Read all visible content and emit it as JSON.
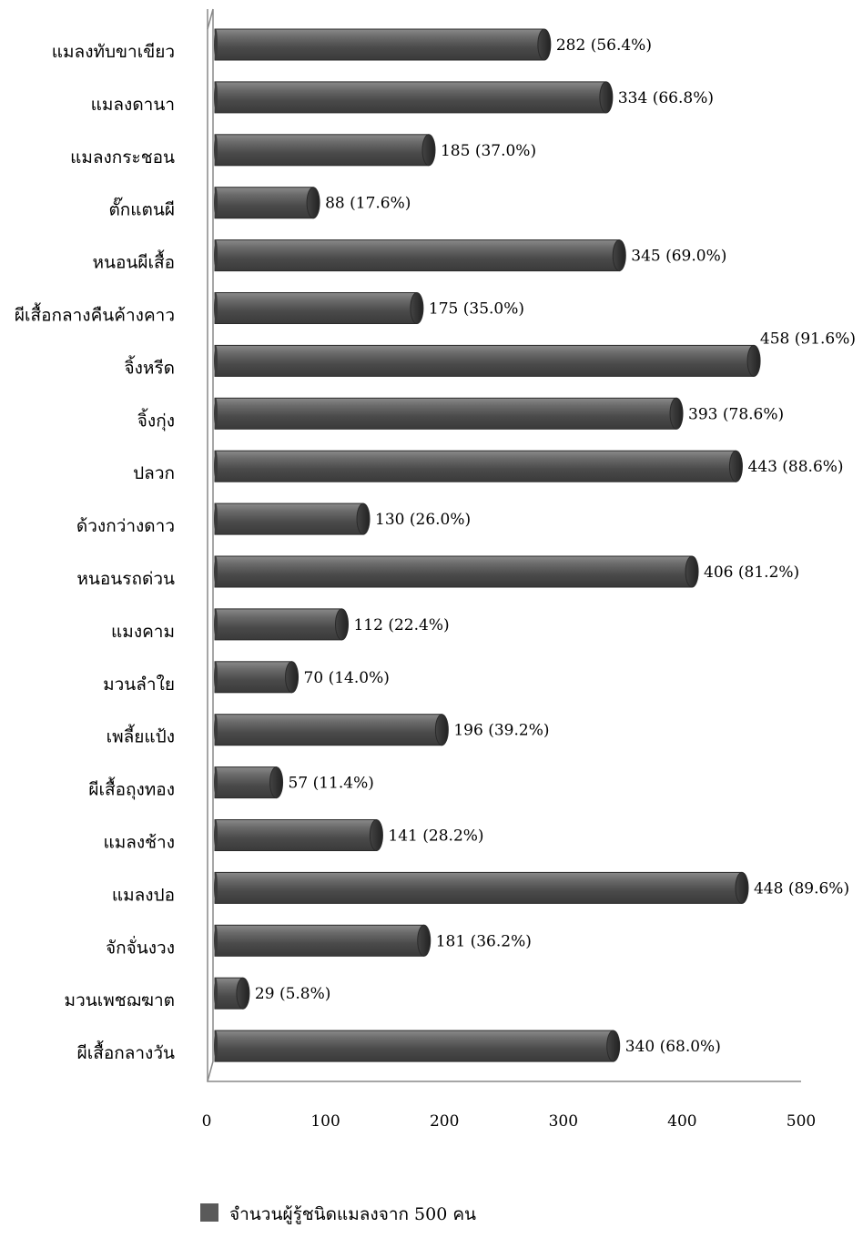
{
  "chart_data": {
    "type": "bar",
    "orientation": "horizontal",
    "categories": [
      "แมลงทับขาเขียว",
      "แมลงดานา",
      "แมลงกระชอน",
      "ตั๊กแตนผี",
      "หนอนผีเสื้อ",
      "ผีเสื้อกลางคืนค้างคาว",
      "จิ้งหรีด",
      "จิ้งกุ่ง",
      "ปลวก",
      "ด้วงกว่างดาว",
      "หนอนรถด่วน",
      "แมงคาม",
      "มวนลำใย",
      "เพลี้ยแป้ง",
      "ผีเสื้อถุงทอง",
      "แมลงช้าง",
      "แมลงปอ",
      "จักจั่นงวง",
      "มวนเพชฌฆาต",
      "ผีเสื้อกลางวัน"
    ],
    "series": [
      {
        "name": "จำนวนผู้รู้ชนิดแมลงจาก 500 คน",
        "values": [
          282,
          334,
          185,
          88,
          345,
          175,
          458,
          393,
          443,
          130,
          406,
          112,
          70,
          196,
          57,
          141,
          448,
          181,
          29,
          340
        ],
        "labels": [
          "282 (56.4%)",
          "334  (66.8%)",
          "185 (37.0%)",
          "88 (17.6%)",
          "345 (69.0%)",
          "175 (35.0%)",
          "458 (91.6%)",
          "393 (78.6%)",
          "443 (88.6%)",
          "130 (26.0%)",
          "406 (81.2%)",
          "112 (22.4%)",
          "70  (14.0%)",
          "196 (39.2%)",
          "57 (11.4%)",
          "141 (28.2%)",
          "448 (89.6%)",
          "181 (36.2%)",
          "29 (5.8%)",
          "340 (68.0%)"
        ]
      }
    ],
    "xlim": [
      0,
      500
    ],
    "xticks": [
      "0",
      "100",
      "200",
      "300",
      "400",
      "500"
    ],
    "grid": false,
    "legend_position": "bottom",
    "bar_color": "#555555"
  }
}
